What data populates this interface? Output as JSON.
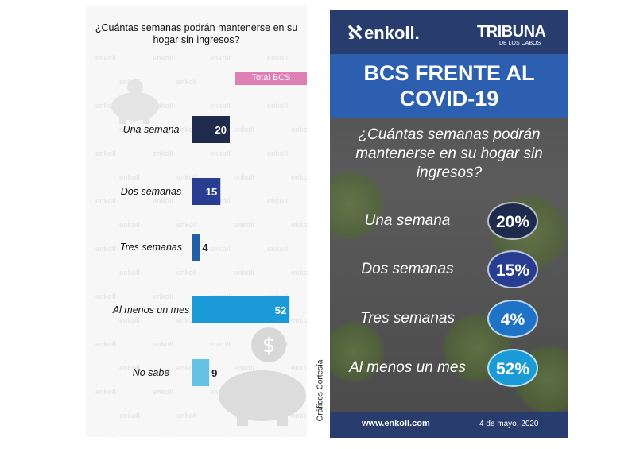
{
  "left_panel": {
    "watermark_text": "enkoll",
    "credit": "Gráficos Cortesía"
  },
  "right_panel": {
    "logo": "enkoll.",
    "partner_logo": "TRIBUNA",
    "partner_sub": "DE LOS CABOS",
    "banner_line1": "BCS FRENTE AL",
    "banner_line2": "COVID-19",
    "question_line1": "¿Cuántas semanas podrán",
    "question_line2": "mantenerse en su hogar sin",
    "question_line3": "ingresos?",
    "items": [
      {
        "label": "Una semana",
        "value_text": "20%",
        "color": "#1f2b4d"
      },
      {
        "label": "Dos semanas",
        "value_text": "15%",
        "color": "#283d8f"
      },
      {
        "label": "Tres semanas",
        "value_text": "4%",
        "color": "#1f73c6"
      },
      {
        "label": "Al menos un mes",
        "value_text": "52%",
        "color": "#1a9ad6"
      }
    ],
    "footer_url": "www.enkoll.com",
    "footer_date": "4 de mayo, 2020"
  },
  "colors": {
    "series_label_bg": "#e07fb6",
    "right_header": "#283c6e",
    "right_banner": "#2c5fb0"
  },
  "chart_data": {
    "type": "bar",
    "orientation": "horizontal",
    "title_line1": "¿Cuántas semanas podrán mantenerse en su",
    "title_line2": "hogar sin ingresos?",
    "series_name": "Total BCS",
    "categories": [
      "Una semana",
      "Dos semanas",
      "Tres semanas",
      "Al menos un mes",
      "No sabe"
    ],
    "values": [
      20,
      15,
      4,
      52,
      9
    ],
    "bar_colors": [
      "#1f2b4d",
      "#283d8f",
      "#1f5fa8",
      "#1a9ad6",
      "#67c3e3"
    ],
    "xlim": [
      0,
      55
    ],
    "grid": false,
    "legend": "top-right"
  }
}
